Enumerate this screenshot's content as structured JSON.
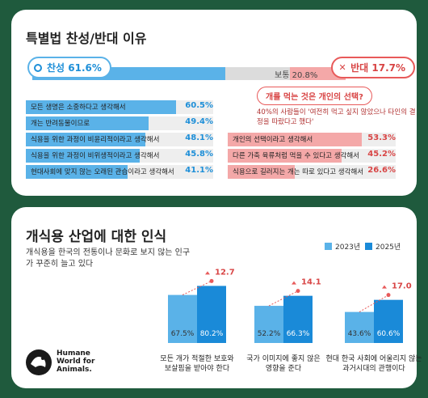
{
  "section1": {
    "title": "특별법 찬성/반대 이유",
    "support_label": "찬성 61.6%",
    "oppose_label": "반대 17.7%",
    "neutral_label": "보통 20.8%",
    "support_value": 61.6,
    "neutral_value": 20.8,
    "oppose_value": 17.7,
    "support_reasons": [
      {
        "text": "모든 생명은 소중하다고 생각해서",
        "value": "60.5%",
        "pct": 60.5
      },
      {
        "text": "개는 반려동물이므로",
        "value": "49.4%",
        "pct": 49.4
      },
      {
        "text": "식용을 위한 과정이 비윤리적이라고 생각해서",
        "value": "48.1%",
        "pct": 48.1
      },
      {
        "text": "식용을 위한 과정이 비위생적이라고 생각해서",
        "value": "45.8%",
        "pct": 45.8
      },
      {
        "text": "현대사회에 맞지 않는 오래된 관습이라고 생각해서",
        "value": "41.1%",
        "pct": 41.1
      }
    ],
    "oppose_pill": "개를 먹는 것은 개인의 선택?",
    "oppose_note": "40%의 사람들이 '여전히 먹고 싶지 않았으나 타인의 결정을 따랐다고 했다'",
    "oppose_reasons": [
      {
        "text": "개인의 선택이라고 생각해서",
        "value": "53.3%",
        "pct": 53.3
      },
      {
        "text": "다른 가축 육류처럼 먹을 수 있다고 생각해서",
        "value": "45.2%",
        "pct": 45.2
      },
      {
        "text": "식용으로 길러지는 개는 따로 있다고 생각해서",
        "value": "26.6%",
        "pct": 26.6
      }
    ]
  },
  "section2": {
    "title": "개식용 산업에 대한 인식",
    "subtitle": "개식용을 한국의 전통이나 문화로 보지 않는 인구가 꾸준히 늘고 있다",
    "legend_2023": "2023년",
    "legend_2025": "2025년",
    "logo_text": "Humane World for Animals."
  },
  "colors": {
    "bg": "#1f5a3d",
    "blue": "#5ab2e8",
    "dark_blue": "#1a8ad8",
    "red": "#e85a5a",
    "light_red": "#f4a8a8"
  },
  "chart_data": {
    "type": "bar",
    "categories": [
      "모든 개가 적절한 보호와 보살핌을 받아야 한다",
      "국가 이미지에 좋지 않은 영향을 준다",
      "현대 한국 사회에 어울리지 않는 과거시대의 관행이다"
    ],
    "category_lines": [
      [
        "모든 개가 적절한 보호와",
        "보살핌을 받아야 한다"
      ],
      [
        "국가 이미지에 좋지 않은",
        "영향을 준다"
      ],
      [
        "현대 한국 사회에 어울리지 않는",
        "과거시대의 관행이다"
      ]
    ],
    "series": [
      {
        "name": "2023년",
        "values": [
          67.5,
          52.2,
          43.6
        ],
        "labels": [
          "67.5%",
          "52.2%",
          "43.6%"
        ]
      },
      {
        "name": "2025년",
        "values": [
          80.2,
          66.3,
          60.6
        ],
        "labels": [
          "80.2%",
          "66.3%",
          "60.6%"
        ]
      }
    ],
    "increases": [
      "12.7",
      "14.1",
      "17.0"
    ]
  }
}
